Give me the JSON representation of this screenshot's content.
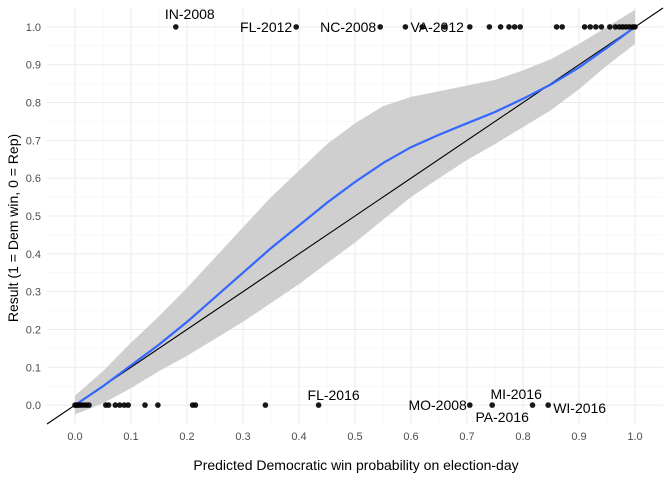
{
  "chart_data": {
    "type": "scatter",
    "title": "",
    "xlabel": "Predicted Democratic win probability on election-day",
    "ylabel": "Result (1 = Dem win, 0 = Rep)",
    "xlim": [
      -0.05,
      1.05
    ],
    "ylim": [
      -0.05,
      1.05
    ],
    "x_ticks": [
      "0.0",
      "0.1",
      "0.2",
      "0.3",
      "0.4",
      "0.5",
      "0.6",
      "0.7",
      "0.8",
      "0.9",
      "1.0"
    ],
    "y_ticks": [
      "0.0",
      "0.1",
      "0.2",
      "0.3",
      "0.4",
      "0.5",
      "0.6",
      "0.7",
      "0.8",
      "0.9",
      "1.0"
    ],
    "grid": true,
    "reference_line": {
      "intercept": 0,
      "slope": 1,
      "color": "#000000"
    },
    "points": [
      {
        "x": 0.0,
        "y": 0
      },
      {
        "x": 0.003,
        "y": 0
      },
      {
        "x": 0.006,
        "y": 0
      },
      {
        "x": 0.01,
        "y": 0
      },
      {
        "x": 0.015,
        "y": 0
      },
      {
        "x": 0.02,
        "y": 0
      },
      {
        "x": 0.025,
        "y": 0
      },
      {
        "x": 0.055,
        "y": 0
      },
      {
        "x": 0.06,
        "y": 0
      },
      {
        "x": 0.072,
        "y": 0
      },
      {
        "x": 0.08,
        "y": 0
      },
      {
        "x": 0.088,
        "y": 0
      },
      {
        "x": 0.095,
        "y": 0
      },
      {
        "x": 0.125,
        "y": 0
      },
      {
        "x": 0.148,
        "y": 0
      },
      {
        "x": 0.21,
        "y": 0
      },
      {
        "x": 0.215,
        "y": 0
      },
      {
        "x": 0.34,
        "y": 0
      },
      {
        "x": 0.435,
        "y": 0
      },
      {
        "x": 0.705,
        "y": 0
      },
      {
        "x": 0.745,
        "y": 0
      },
      {
        "x": 0.817,
        "y": 0
      },
      {
        "x": 0.845,
        "y": 0
      },
      {
        "x": 0.18,
        "y": 1
      },
      {
        "x": 0.395,
        "y": 1
      },
      {
        "x": 0.545,
        "y": 1
      },
      {
        "x": 0.59,
        "y": 1
      },
      {
        "x": 0.62,
        "y": 1
      },
      {
        "x": 0.66,
        "y": 1
      },
      {
        "x": 0.705,
        "y": 1
      },
      {
        "x": 0.74,
        "y": 1
      },
      {
        "x": 0.76,
        "y": 1
      },
      {
        "x": 0.775,
        "y": 1
      },
      {
        "x": 0.785,
        "y": 1
      },
      {
        "x": 0.795,
        "y": 1
      },
      {
        "x": 0.86,
        "y": 1
      },
      {
        "x": 0.87,
        "y": 1
      },
      {
        "x": 0.91,
        "y": 1
      },
      {
        "x": 0.92,
        "y": 1
      },
      {
        "x": 0.93,
        "y": 1
      },
      {
        "x": 0.94,
        "y": 1
      },
      {
        "x": 0.955,
        "y": 1
      },
      {
        "x": 0.965,
        "y": 1
      },
      {
        "x": 0.972,
        "y": 1
      },
      {
        "x": 0.978,
        "y": 1
      },
      {
        "x": 0.984,
        "y": 1
      },
      {
        "x": 0.99,
        "y": 1
      },
      {
        "x": 0.996,
        "y": 1
      },
      {
        "x": 1.0,
        "y": 1
      }
    ],
    "annotations": [
      {
        "label": "IN-2008",
        "x": 0.18,
        "y": 1
      },
      {
        "label": "FL-2012",
        "x": 0.395,
        "y": 1
      },
      {
        "label": "NC-2008",
        "x": 0.545,
        "y": 1
      },
      {
        "label": "VA-2012",
        "x": 0.62,
        "y": 1
      },
      {
        "label": "FL-2016",
        "x": 0.435,
        "y": 0
      },
      {
        "label": "MO-2008",
        "x": 0.705,
        "y": 0
      },
      {
        "label": "MI-2016",
        "x": 0.745,
        "y": 0
      },
      {
        "label": "PA-2016",
        "x": 0.745,
        "y": 0
      },
      {
        "label": "WI-2016",
        "x": 0.845,
        "y": 0
      }
    ],
    "smooth": {
      "color": "#3366ff",
      "band_color": "#cccccc",
      "x": [
        0.0,
        0.05,
        0.1,
        0.15,
        0.2,
        0.25,
        0.3,
        0.35,
        0.4,
        0.45,
        0.5,
        0.55,
        0.6,
        0.65,
        0.7,
        0.75,
        0.8,
        0.85,
        0.9,
        0.95,
        1.0
      ],
      "y": [
        0.0,
        0.05,
        0.105,
        0.16,
        0.22,
        0.285,
        0.35,
        0.415,
        0.475,
        0.535,
        0.59,
        0.64,
        0.682,
        0.715,
        0.745,
        0.775,
        0.81,
        0.848,
        0.893,
        0.945,
        1.0
      ],
      "lower": [
        -0.025,
        0.005,
        0.045,
        0.09,
        0.13,
        0.175,
        0.22,
        0.27,
        0.32,
        0.375,
        0.43,
        0.49,
        0.55,
        0.6,
        0.648,
        0.69,
        0.735,
        0.78,
        0.835,
        0.898,
        0.955
      ],
      "upper": [
        0.025,
        0.09,
        0.165,
        0.235,
        0.31,
        0.39,
        0.47,
        0.55,
        0.62,
        0.69,
        0.745,
        0.79,
        0.815,
        0.83,
        0.845,
        0.86,
        0.885,
        0.915,
        0.955,
        1.0,
        1.045
      ]
    }
  }
}
